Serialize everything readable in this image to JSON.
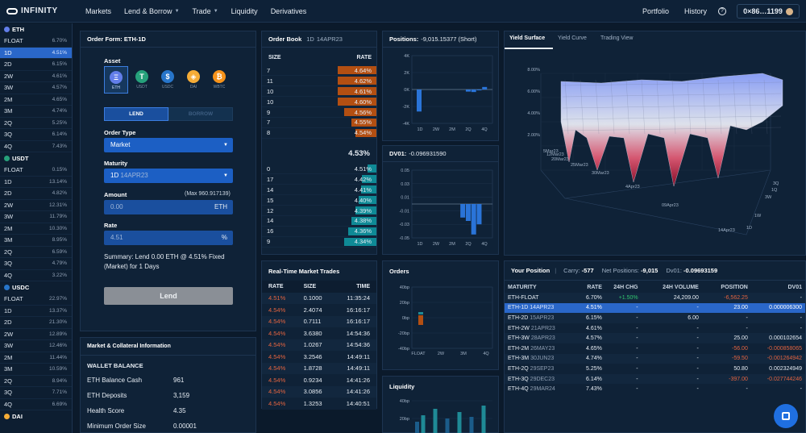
{
  "nav": {
    "brand": "INFINITY",
    "items": [
      "Markets",
      "Lend & Borrow",
      "Trade",
      "Liquidity",
      "Derivatives"
    ],
    "portfolio": "Portfolio",
    "history": "History",
    "help": "?",
    "wallet": "0×86…1199"
  },
  "sidebar": {
    "groups": [
      {
        "name": "ETH",
        "color": "#627eea",
        "rows": [
          [
            "FLOAT",
            "6.70%"
          ],
          [
            "1D",
            "4.51%"
          ],
          [
            "2D",
            "6.15%"
          ],
          [
            "2W",
            "4.61%"
          ],
          [
            "3W",
            "4.57%"
          ],
          [
            "2M",
            "4.65%"
          ],
          [
            "3M",
            "4.74%"
          ],
          [
            "2Q",
            "5.25%"
          ],
          [
            "3Q",
            "6.14%"
          ],
          [
            "4Q",
            "7.43%"
          ]
        ]
      },
      {
        "name": "USDT",
        "color": "#26a17b",
        "rows": [
          [
            "FLOAT",
            "0.15%"
          ],
          [
            "1D",
            "13.14%"
          ],
          [
            "2D",
            "4.82%"
          ],
          [
            "2W",
            "12.31%"
          ],
          [
            "3W",
            "11.79%"
          ],
          [
            "2M",
            "10.30%"
          ],
          [
            "3M",
            "8.95%"
          ],
          [
            "2Q",
            "6.59%"
          ],
          [
            "3Q",
            "4.79%"
          ],
          [
            "4Q",
            "3.22%"
          ]
        ]
      },
      {
        "name": "USDC",
        "color": "#2775ca",
        "rows": [
          [
            "FLOAT",
            "22.97%"
          ],
          [
            "1D",
            "13.37%"
          ],
          [
            "2D",
            "21.30%"
          ],
          [
            "2W",
            "12.89%"
          ],
          [
            "3W",
            "12.46%"
          ],
          [
            "2M",
            "11.44%"
          ],
          [
            "3M",
            "10.59%"
          ],
          [
            "2Q",
            "8.94%"
          ],
          [
            "3Q",
            "7.71%"
          ],
          [
            "4Q",
            "6.69%"
          ]
        ]
      },
      {
        "name": "DAI",
        "color": "#f5ac37",
        "rows": []
      }
    ]
  },
  "order_form": {
    "title": "Order Form:",
    "title_market": "ETH-1D",
    "asset_label": "Asset",
    "assets": [
      {
        "sym": "Ξ",
        "name": "ETH",
        "color": "#627eea"
      },
      {
        "sym": "T",
        "name": "USDT",
        "color": "#26a17b"
      },
      {
        "sym": "$",
        "name": "USDC",
        "color": "#2775ca"
      },
      {
        "sym": "◈",
        "name": "DAI",
        "color": "#f5ac37"
      },
      {
        "sym": "₿",
        "name": "WBTC",
        "color": "#f7931a"
      }
    ],
    "lend": "LEND",
    "borrow": "BORROW",
    "order_type_label": "Order Type",
    "order_type": "Market",
    "maturity_label": "Maturity",
    "maturity_code": "1D",
    "maturity_date": "14APR23",
    "amount_label": "Amount",
    "amount_max": "(Max 960.917139)",
    "amount_placeholder": "0.00",
    "amount_unit": "ETH",
    "rate_label": "Rate",
    "rate_value": "4.51",
    "rate_unit": "%",
    "summary": "Summary: Lend 0.00 ETH @ 4.51% Fixed (Market) for 1 Days",
    "submit": "Lend"
  },
  "market_info": {
    "title": "Market & Collateral Information",
    "wallet_balance": "WALLET BALANCE",
    "rows": [
      [
        "ETH Balance Cash",
        "961"
      ],
      [
        "ETH Deposits",
        "3,159"
      ],
      [
        "Health Score",
        "4.35"
      ],
      [
        "Minimum Order Size",
        "0.00001"
      ]
    ]
  },
  "order_book": {
    "title": "Order Book",
    "code": "1D",
    "date": "14APR23",
    "col_size": "SIZE",
    "col_rate": "RATE",
    "asks": [
      [
        "7",
        "4.64%",
        0.55
      ],
      [
        "11",
        "4.62%",
        0.55
      ],
      [
        "10",
        "4.61%",
        0.55
      ],
      [
        "10",
        "4.60%",
        0.55
      ],
      [
        "9",
        "4.56%",
        0.45
      ],
      [
        "7",
        "4.55%",
        0.35
      ],
      [
        "8",
        "4.54%",
        0.3
      ]
    ],
    "mid": "4.53%",
    "bids": [
      [
        "0",
        "4.51%",
        0.12
      ],
      [
        "17",
        "4.42%",
        0.2
      ],
      [
        "14",
        "4.41%",
        0.22
      ],
      [
        "15",
        "4.40%",
        0.25
      ],
      [
        "12",
        "4.39%",
        0.3
      ],
      [
        "14",
        "4.38%",
        0.35
      ],
      [
        "16",
        "4.36%",
        0.4
      ],
      [
        "9",
        "4.34%",
        0.45
      ]
    ]
  },
  "trades": {
    "title": "Real-Time Market Trades",
    "cols": [
      "RATE",
      "SIZE",
      "TIME"
    ],
    "rows": [
      [
        "4.51%",
        "0.1000",
        "11:35:24"
      ],
      [
        "4.54%",
        "2.4074",
        "16:16:17"
      ],
      [
        "4.54%",
        "0.7111",
        "16:16:17"
      ],
      [
        "4.54%",
        "3.6380",
        "14:54:36"
      ],
      [
        "4.54%",
        "1.0267",
        "14:54:36"
      ],
      [
        "4.54%",
        "3.2546",
        "14:49:11"
      ],
      [
        "4.54%",
        "1.8728",
        "14:49:11"
      ],
      [
        "4.54%",
        "0.9234",
        "14:41:26"
      ],
      [
        "4.54%",
        "3.0856",
        "14:41:26"
      ],
      [
        "4.54%",
        "1.3253",
        "14:40:51"
      ]
    ]
  },
  "positions_chart": {
    "title": "Positions:",
    "value": "-9,015.15377 (Short)",
    "yticks": [
      "4K",
      "2K",
      "0K",
      "-2K",
      "-4K"
    ],
    "xticks": [
      "1D",
      "2W",
      "2M",
      "2Q",
      "4Q"
    ],
    "bars": [
      [
        0,
        -2.6
      ],
      [
        9,
        -0.25
      ],
      [
        10,
        -0.3
      ],
      [
        11,
        -0.1
      ],
      [
        12,
        0.3
      ]
    ]
  },
  "dv01_chart": {
    "title": "DV01:",
    "value": "-0.096931590",
    "yticks": [
      "0.05",
      "0.03",
      "0.01",
      "-0.01",
      "-0.03",
      "-0.05"
    ],
    "xticks": [
      "1D",
      "2W",
      "2M",
      "2Q",
      "4Q"
    ],
    "bars": [
      [
        8,
        -0.02
      ],
      [
        9,
        -0.025
      ],
      [
        10,
        -0.045
      ],
      [
        11,
        -0.03
      ]
    ]
  },
  "orders_chart": {
    "title": "Orders",
    "yticks": [
      "40bp",
      "20bp",
      "0bp",
      "-20bp",
      "-40bp"
    ],
    "xticks": [
      "FLOAT",
      "2W",
      "3M",
      "4Q"
    ]
  },
  "liquidity_chart": {
    "title": "Liquidity",
    "yticks": [
      "40bp",
      "20bp"
    ]
  },
  "yield_tabs": [
    "Yield Surface",
    "Yield Curve",
    "Trading View"
  ],
  "surface": {
    "zticks": [
      "8.00%",
      "6.00%",
      "4.00%",
      "2.00%"
    ],
    "dates": [
      "5Mar23",
      "12Mar23",
      "20Mar23",
      "25Mar23",
      "30Mar23",
      "4Apr23",
      "09Apr23",
      "14Apr23"
    ],
    "tenors": [
      "3Q",
      "1Q",
      "3W",
      "1W",
      "1D"
    ]
  },
  "your_position": {
    "title": "Your Position",
    "carry_label": "Carry:",
    "carry": "-577",
    "net_label": "Net Positions:",
    "net": "-9,015",
    "dv01_label": "Dv01:",
    "dv01": "-0.09693159",
    "cols": [
      "MATURITY",
      "RATE",
      "24H CHG",
      "24H VOLUME",
      "POSITION",
      "DV01"
    ],
    "rows": [
      [
        "ETH-FLOAT",
        "",
        "6.70%",
        "+1.50%",
        "24,209.00",
        "-6,562.25",
        "-"
      ],
      [
        "ETH-1D",
        "14APR23",
        "4.51%",
        "-",
        "-",
        "23.00",
        "0.000006300"
      ],
      [
        "ETH-2D",
        "15APR23",
        "6.15%",
        "-",
        "6.00",
        "-",
        "-"
      ],
      [
        "ETH-2W",
        "21APR23",
        "4.61%",
        "-",
        "-",
        "-",
        "-"
      ],
      [
        "ETH-3W",
        "28APR23",
        "4.57%",
        "-",
        "-",
        "25.00",
        "0.000102654"
      ],
      [
        "ETH-2M",
        "26MAY23",
        "4.65%",
        "-",
        "-",
        "-56.00",
        "-0.000858065"
      ],
      [
        "ETH-3M",
        "30JUN23",
        "4.74%",
        "-",
        "-",
        "-59.50",
        "-0.001264942"
      ],
      [
        "ETH-2Q",
        "29SEP23",
        "5.25%",
        "-",
        "-",
        "50.80",
        "0.002324949"
      ],
      [
        "ETH-3Q",
        "29DEC23",
        "6.14%",
        "-",
        "-",
        "-397.00",
        "-0.027744246"
      ],
      [
        "ETH-4Q",
        "29MAR24",
        "7.43%",
        "-",
        "-",
        "-",
        "-"
      ]
    ]
  },
  "colors": {
    "accent": "#2a67c9",
    "ask": "#b34f12",
    "bid": "#0f8a96",
    "neg": "#e2633f",
    "pos": "#31c46e"
  }
}
